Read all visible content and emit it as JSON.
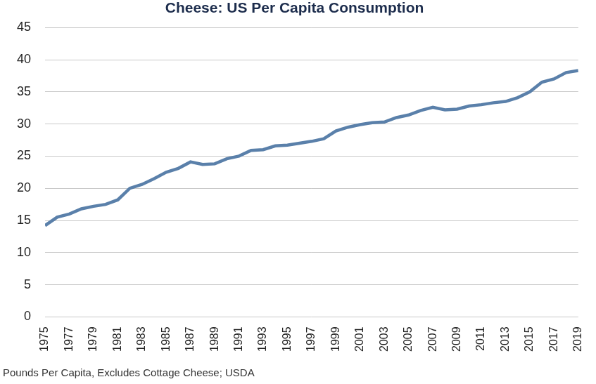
{
  "chart_data": {
    "type": "line",
    "title": "Cheese: US Per Capita Consumption",
    "footnote": "Pounds Per Capita, Excludes Cottage Cheese; USDA",
    "categories": [
      "1975",
      null,
      "1977",
      null,
      "1979",
      null,
      "1981",
      null,
      "1983",
      null,
      "1985",
      null,
      "1987",
      null,
      "1989",
      null,
      "1991",
      null,
      "1993",
      null,
      "1995",
      null,
      "1997",
      null,
      "1999",
      null,
      "2001",
      null,
      "2003",
      null,
      "2005",
      null,
      "2007",
      null,
      "2009",
      null,
      "2011",
      null,
      "2013",
      null,
      "2015",
      null,
      "2017",
      null,
      "2019"
    ],
    "values": [
      14.2,
      15.5,
      16.0,
      16.8,
      17.2,
      17.5,
      18.2,
      20.0,
      20.6,
      21.5,
      22.5,
      23.1,
      24.1,
      23.7,
      23.8,
      24.6,
      25.0,
      25.9,
      26.0,
      26.6,
      26.7,
      27.0,
      27.3,
      27.7,
      28.9,
      29.5,
      29.9,
      30.2,
      30.3,
      31.0,
      31.4,
      32.1,
      32.6,
      32.2,
      32.3,
      32.8,
      33.0,
      33.3,
      33.5,
      34.1,
      35.0,
      36.5,
      37.0,
      38.0,
      38.3
    ],
    "color": "#5a80aa",
    "ylim": [
      0,
      45
    ],
    "yticks": [
      0,
      5,
      10,
      15,
      20,
      25,
      30,
      35,
      40,
      45
    ],
    "grid": true
  }
}
